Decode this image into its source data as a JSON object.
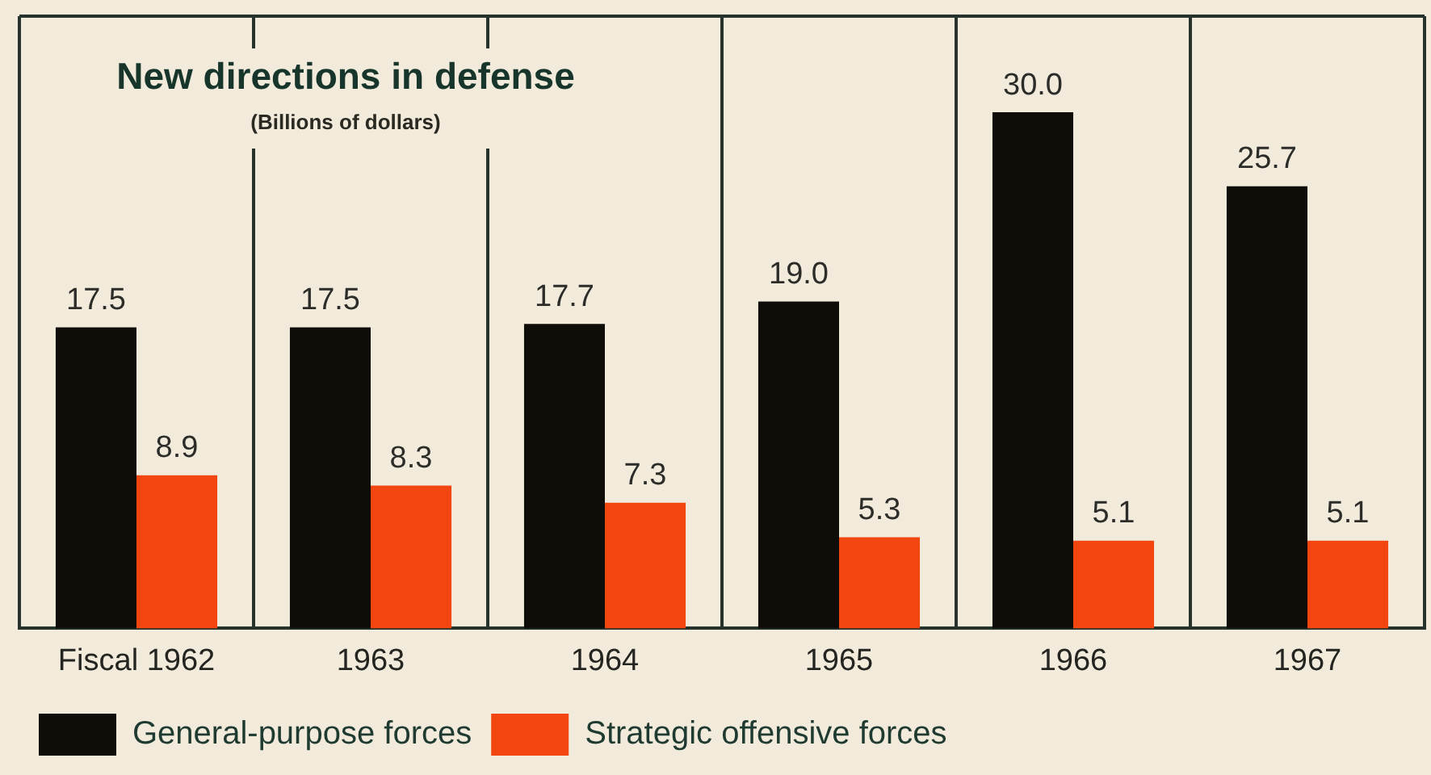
{
  "chart_data": {
    "type": "bar",
    "title": "New directions in defense",
    "subtitle": "(Billions of dollars)",
    "categories": [
      "Fiscal 1962",
      "1963",
      "1964",
      "1965",
      "1966",
      "1967"
    ],
    "series": [
      {
        "name": "General-purpose forces",
        "color": "#0f0d08",
        "values": [
          17.5,
          17.5,
          17.7,
          19.0,
          30.0,
          25.7
        ],
        "value_labels": [
          "17.5",
          "17.5",
          "17.7",
          "19.0",
          "30.0",
          "25.7"
        ]
      },
      {
        "name": "Strategic offensive forces",
        "color": "#f2450f",
        "values": [
          8.9,
          8.3,
          7.3,
          5.3,
          5.1,
          5.1
        ],
        "value_labels": [
          "8.9",
          "8.3",
          "7.3",
          "5.3",
          "5.1",
          "5.1"
        ]
      }
    ],
    "grid": "x",
    "legend": "bottom left"
  }
}
